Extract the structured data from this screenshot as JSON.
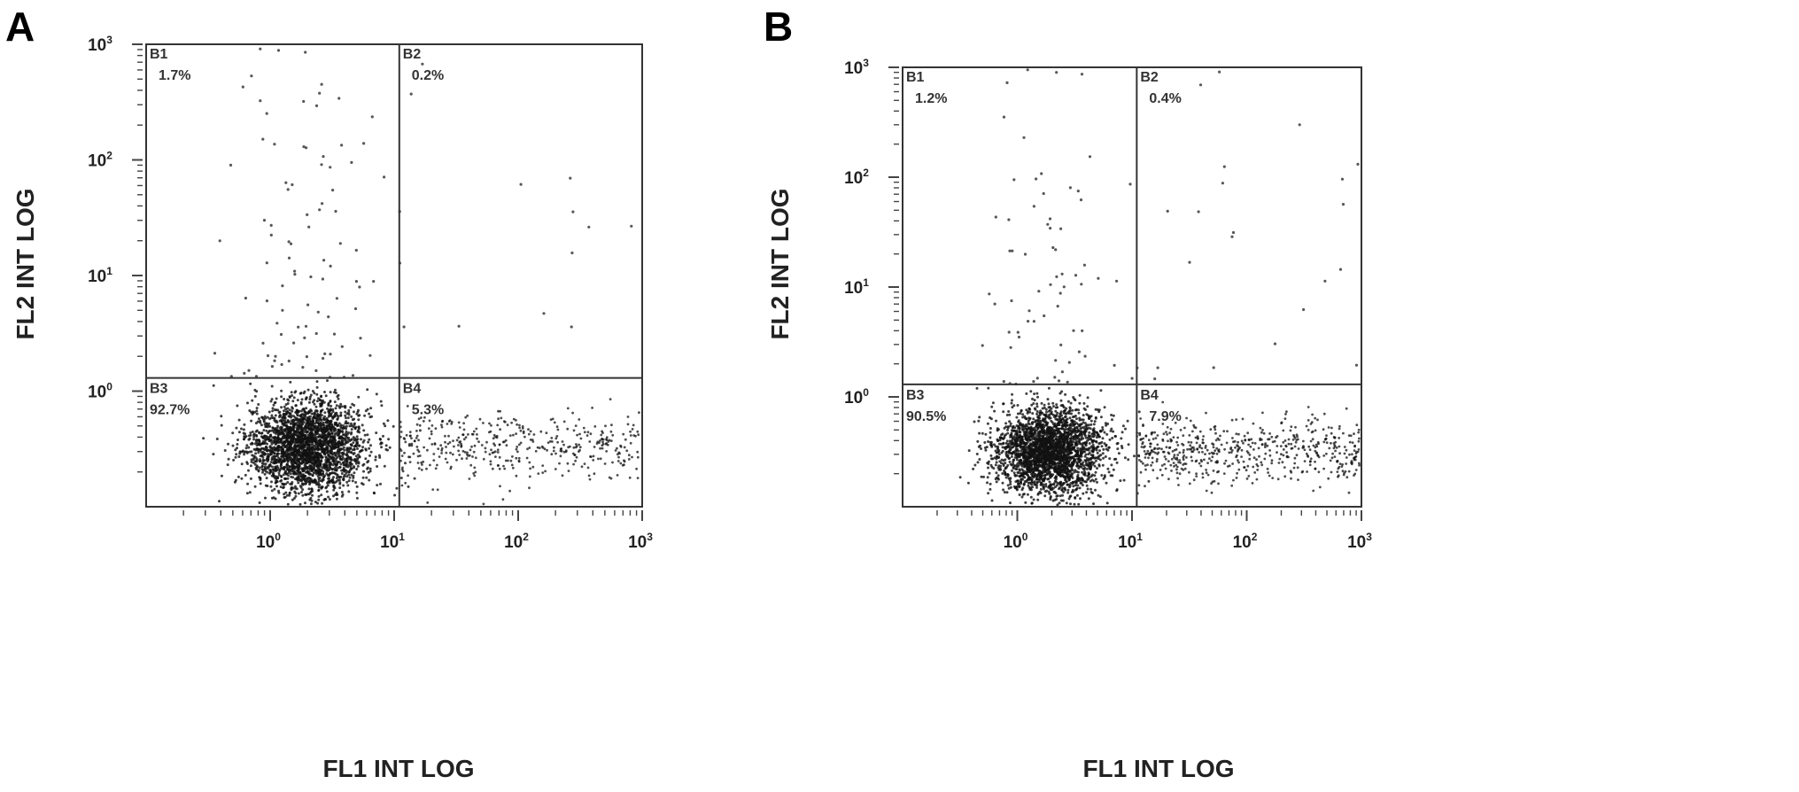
{
  "chart_data": [
    {
      "type": "scatter",
      "panel_label": "A",
      "xlabel": "FL1 INT LOG",
      "ylabel": "FL2 INT LOG",
      "x_scale": "log",
      "y_scale": "log",
      "xlim": [
        0.1,
        1000
      ],
      "ylim": [
        0.1,
        1000
      ],
      "x_ticks": [
        {
          "base": "10",
          "exp": "0",
          "value": 1
        },
        {
          "base": "10",
          "exp": "1",
          "value": 10
        },
        {
          "base": "10",
          "exp": "2",
          "value": 100
        },
        {
          "base": "10",
          "exp": "3",
          "value": 1000
        }
      ],
      "y_ticks": [
        {
          "base": "10",
          "exp": "0",
          "value": 1
        },
        {
          "base": "10",
          "exp": "1",
          "value": 10
        },
        {
          "base": "10",
          "exp": "2",
          "value": 100
        },
        {
          "base": "10",
          "exp": "3",
          "value": 1000
        }
      ],
      "gate_x": 11,
      "gate_y": 1.3,
      "quadrants": [
        {
          "name": "B1",
          "percent": "1.7%"
        },
        {
          "name": "B2",
          "percent": "0.2%"
        },
        {
          "name": "B3",
          "percent": "92.7%"
        },
        {
          "name": "B4",
          "percent": "5.3%"
        }
      ],
      "population": {
        "center": [
          2.0,
          0.33
        ],
        "count": 2700,
        "b4_count": 420,
        "b1_count": 95,
        "b2_count": 14
      }
    },
    {
      "type": "scatter",
      "panel_label": "B",
      "xlabel": "FL1 INT LOG",
      "ylabel": "FL2 INT LOG",
      "x_scale": "log",
      "y_scale": "log",
      "xlim": [
        0.1,
        1000
      ],
      "ylim": [
        0.1,
        1000
      ],
      "x_ticks": [
        {
          "base": "10",
          "exp": "0",
          "value": 1
        },
        {
          "base": "10",
          "exp": "1",
          "value": 10
        },
        {
          "base": "10",
          "exp": "2",
          "value": 100
        },
        {
          "base": "10",
          "exp": "3",
          "value": 1000
        }
      ],
      "y_ticks": [
        {
          "base": "10",
          "exp": "0",
          "value": 1
        },
        {
          "base": "10",
          "exp": "1",
          "value": 10
        },
        {
          "base": "10",
          "exp": "2",
          "value": 100
        },
        {
          "base": "10",
          "exp": "3",
          "value": 1000
        }
      ],
      "gate_x": 11,
      "gate_y": 1.3,
      "quadrants": [
        {
          "name": "B1",
          "percent": "1.2%"
        },
        {
          "name": "B2",
          "percent": "0.4%"
        },
        {
          "name": "B3",
          "percent": "90.5%"
        },
        {
          "name": "B4",
          "percent": "7.9%"
        }
      ],
      "population": {
        "center": [
          1.9,
          0.32
        ],
        "count": 2700,
        "b4_count": 560,
        "b1_count": 70,
        "b2_count": 22
      }
    }
  ]
}
